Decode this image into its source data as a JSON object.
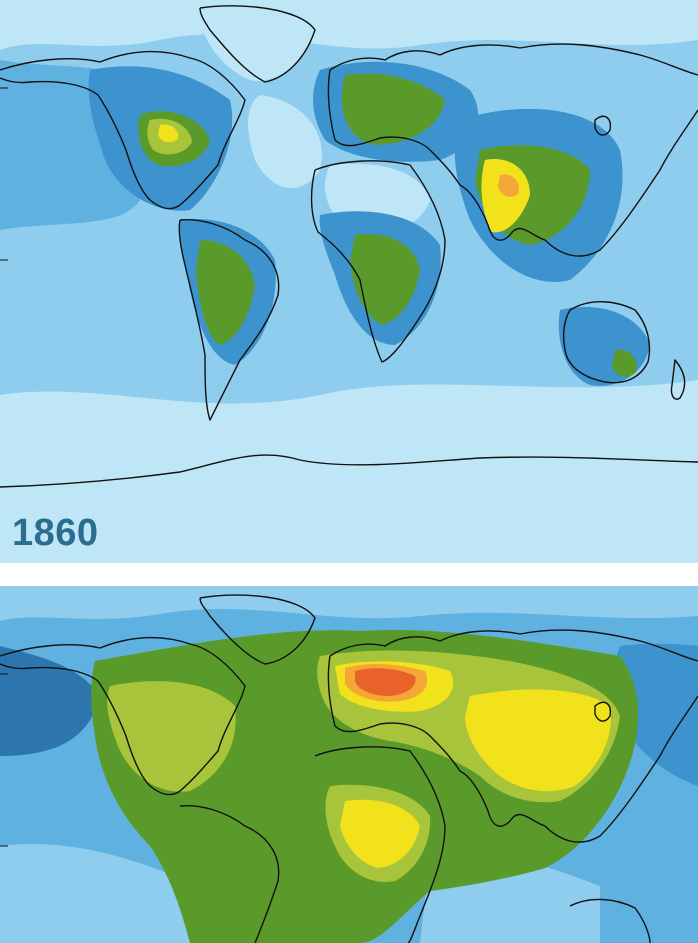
{
  "maps": [
    {
      "year_label": "1860",
      "colors": {
        "c0": "#bfe6f7",
        "c1": "#8fcdee",
        "c2": "#5fb1e0",
        "c3": "#3d93cd",
        "c4": "#2d76ad",
        "c5": "#5a9a2a",
        "c6": "#a8c43a",
        "c7": "#f2e21c",
        "c8": "#f4a636",
        "c9": "#e8622a"
      }
    },
    {
      "year_label": "",
      "colors": {
        "c0": "#bfe6f7",
        "c1": "#8fcdee",
        "c2": "#5fb1e0",
        "c3": "#3d93cd",
        "c4": "#2d76ad",
        "c5": "#5a9a2a",
        "c6": "#a8c43a",
        "c7": "#f2e21c",
        "c8": "#f4a636",
        "c9": "#e8622a"
      }
    }
  ]
}
